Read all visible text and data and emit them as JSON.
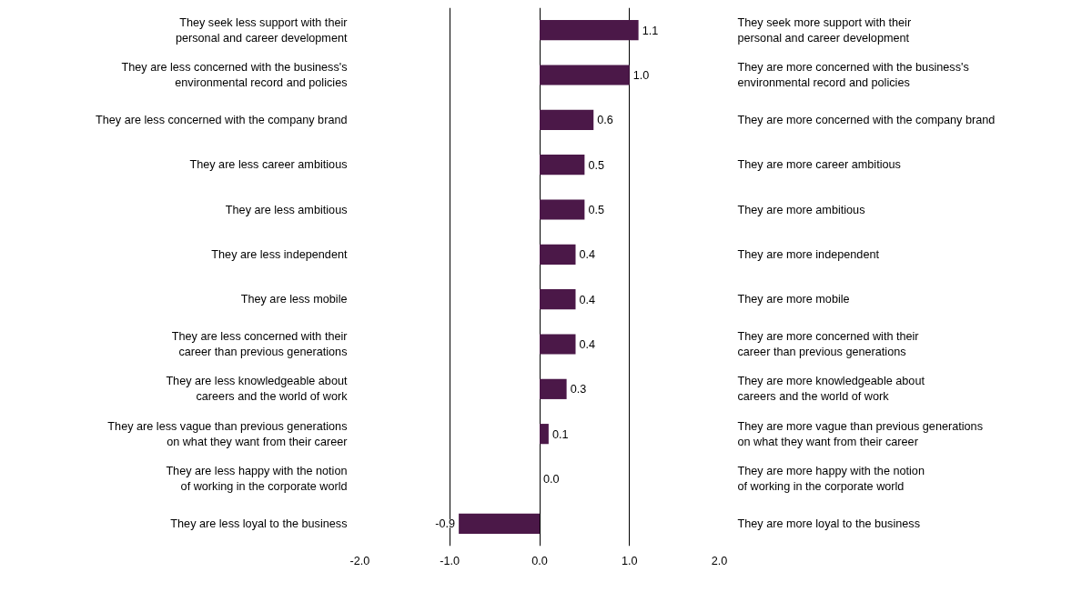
{
  "chart_data": {
    "type": "bar",
    "orientation": "horizontal",
    "color": "#4b1848",
    "categories": [
      "They seek less support with their\npersonal and career development",
      "They are less concerned with the business's\nenvironmental record and policies",
      "They are less concerned with the company brand",
      "They are less career ambitious",
      "They are less ambitious",
      "They are less independent",
      "They are less mobile",
      "They are less concerned with their\ncareer than previous generations",
      "They are less knowledgeable about\ncareers and the world of work",
      "They are less vague than previous generations\non what they want from their career",
      "They are less happy with the notion\nof working in the corporate world",
      "They are less loyal to the business"
    ],
    "values": [
      1.1,
      1.0,
      0.6,
      0.5,
      0.5,
      0.4,
      0.4,
      0.4,
      0.3,
      0.1,
      0.0,
      -0.9
    ],
    "annotations": [
      "They seek more support with their\npersonal and career development",
      "They are more concerned with the business's\nenvironmental record and policies",
      "They are more concerned with the company brand",
      "They are more career ambitious",
      "They are more ambitious",
      "They are more independent",
      "They are more mobile",
      "They are more concerned with their\ncareer than previous generations",
      "They are more knowledgeable about\ncareers and the world of work",
      "They are more vague than previous generations\non what they want from their career",
      "They are more happy with the notion\nof working in the corporate world",
      "They are more loyal to the business"
    ],
    "xlim": [
      -2,
      2
    ],
    "xticks": [
      {
        "value": -2,
        "label": "-2.0"
      },
      {
        "value": -1,
        "label": "-1.0"
      },
      {
        "value": 0,
        "label": "0.0"
      },
      {
        "value": 1,
        "label": "1.0"
      },
      {
        "value": 2,
        "label": "2.0"
      }
    ],
    "value_labels": [
      "1.1",
      "1.0",
      "0.6",
      "0.5",
      "0.5",
      "0.4",
      "0.4",
      "0.4",
      "0.3",
      "0.1",
      "0.0",
      "-0.9"
    ],
    "grid": "x"
  }
}
